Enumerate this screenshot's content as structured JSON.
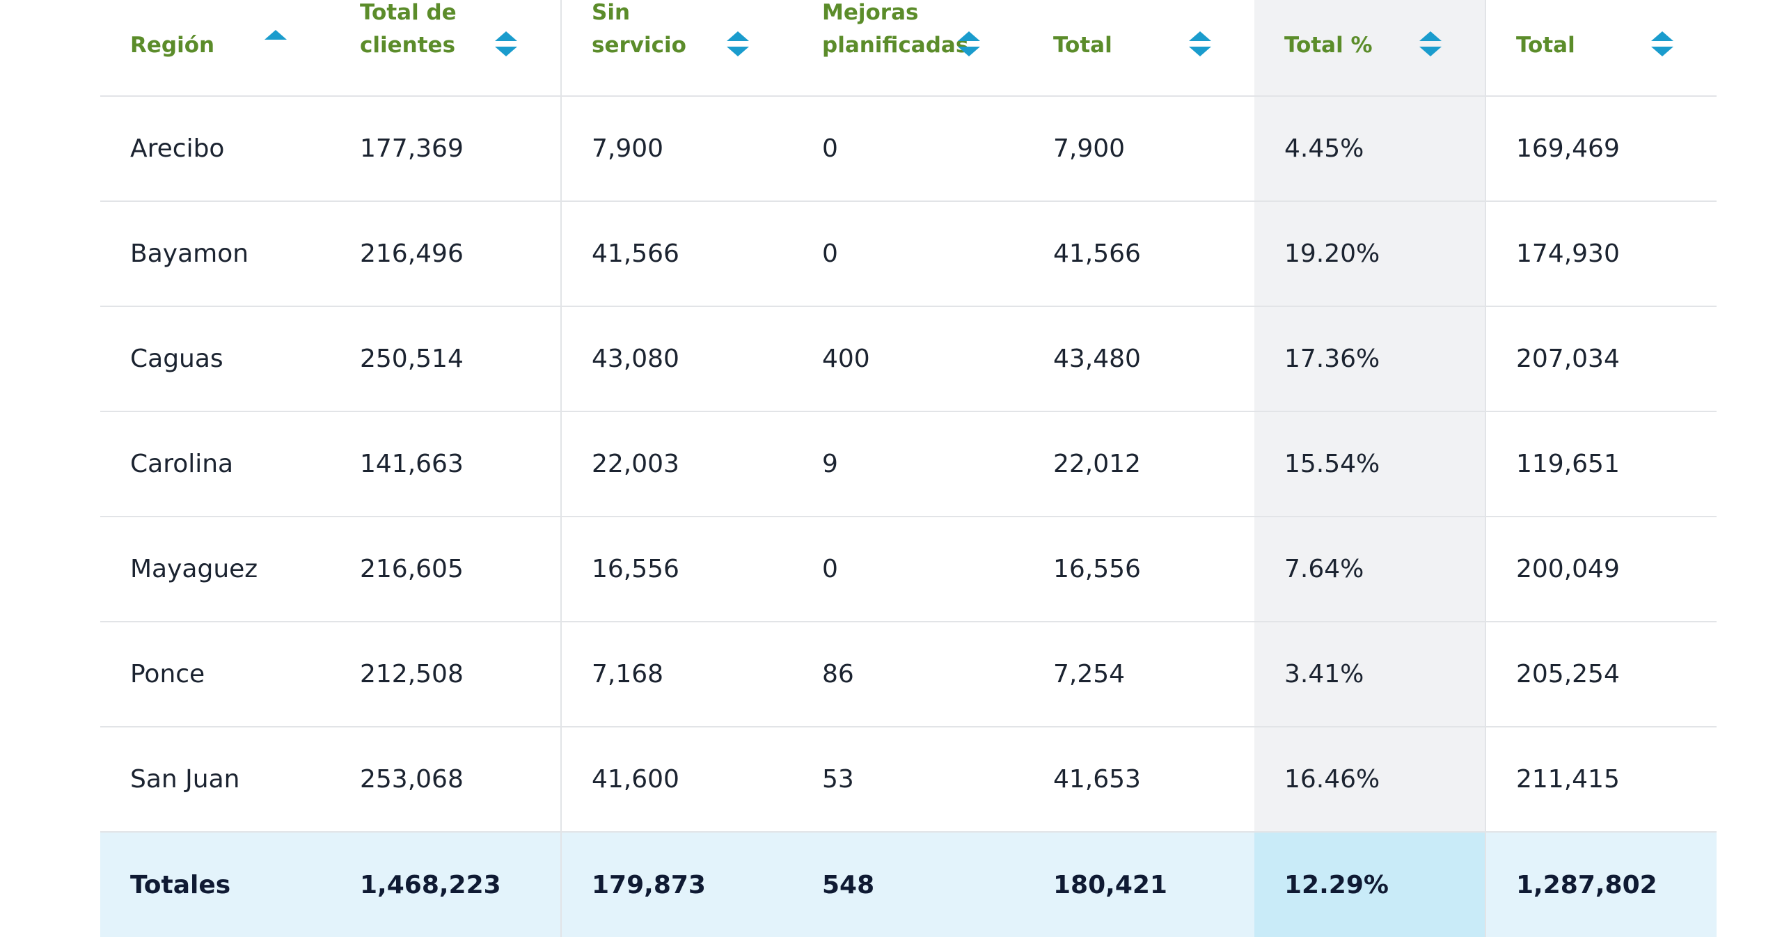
{
  "colors": {
    "header_text": "#5b8c2a",
    "sort_arrow": "#1a9ccd",
    "highlight_column": "#f1f2f4",
    "totals_row": "#e3f3fb",
    "totals_highlight": "#c9ebf8"
  },
  "table": {
    "headers": [
      {
        "label": "Región",
        "sort_icon": "sort-up-icon"
      },
      {
        "label": "Total de\nclientes",
        "sort_icon": "sort-icon"
      },
      {
        "label": "Sin\nservicio",
        "sort_icon": "sort-icon"
      },
      {
        "label": "Mejoras\nplanificadas",
        "sort_icon": "sort-icon"
      },
      {
        "label": "Total",
        "sort_icon": "sort-icon"
      },
      {
        "label": "Total %",
        "sort_icon": "sort-icon"
      },
      {
        "label": "Total",
        "sort_icon": "sort-icon"
      }
    ],
    "rows": [
      [
        "Arecibo",
        "177,369",
        "7,900",
        "0",
        "7,900",
        "4.45%",
        "169,469"
      ],
      [
        "Bayamon",
        "216,496",
        "41,566",
        "0",
        "41,566",
        "19.20%",
        "174,930"
      ],
      [
        "Caguas",
        "250,514",
        "43,080",
        "400",
        "43,480",
        "17.36%",
        "207,034"
      ],
      [
        "Carolina",
        "141,663",
        "22,003",
        "9",
        "22,012",
        "15.54%",
        "119,651"
      ],
      [
        "Mayaguez",
        "216,605",
        "16,556",
        "0",
        "16,556",
        "7.64%",
        "200,049"
      ],
      [
        "Ponce",
        "212,508",
        "7,168",
        "86",
        "7,254",
        "3.41%",
        "205,254"
      ],
      [
        "San Juan",
        "253,068",
        "41,600",
        "53",
        "41,653",
        "16.46%",
        "211,415"
      ]
    ],
    "totals": [
      "Totales",
      "1,468,223",
      "179,873",
      "548",
      "180,421",
      "12.29%",
      "1,287,802"
    ]
  }
}
